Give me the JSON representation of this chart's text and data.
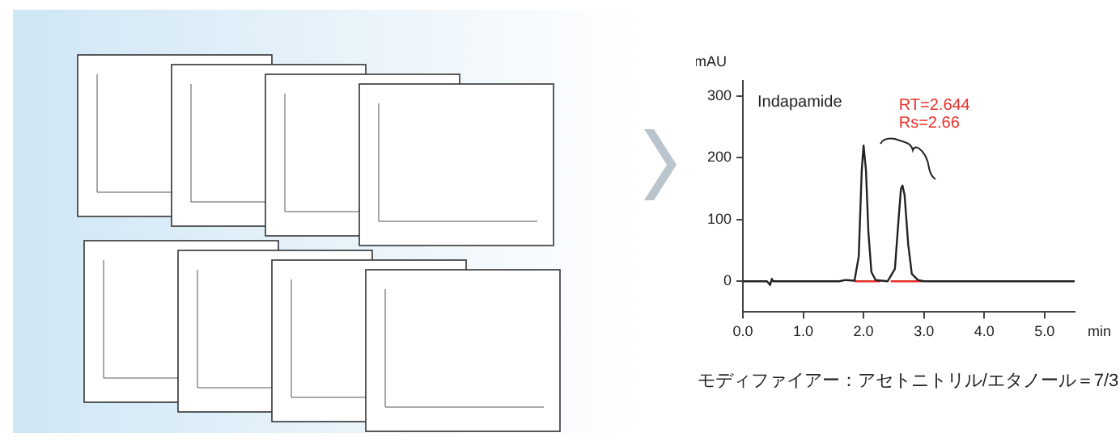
{
  "chart_data": {
    "type": "line",
    "xlabel": "min",
    "ylabel": "mAU",
    "annotations": [
      "Indapamide",
      "RT=2.644",
      "Rs=2.66",
      "モディファイアー：アセトニトリル/エタノール＝7/3"
    ],
    "series": [
      {
        "color": "#222222",
        "x": [
          0,
          0.4,
          0.45,
          0.48,
          0.5,
          1.6,
          1.7,
          1.85,
          1.92,
          1.97,
          2.0,
          2.04,
          2.08,
          2.13,
          2.2,
          2.4,
          2.52,
          2.58,
          2.62,
          2.645,
          2.68,
          2.74,
          2.8,
          2.9,
          3.0,
          5.5
        ],
        "values": [
          0,
          0,
          -6,
          4,
          0,
          0,
          2,
          1,
          40,
          180,
          220,
          180,
          80,
          15,
          2,
          0,
          20,
          100,
          150,
          155,
          140,
          60,
          12,
          2,
          0,
          0
        ]
      },
      {
        "color": "#e8312a",
        "x": [
          1.85,
          2.28,
          2.3,
          2.45,
          2.97
        ],
        "values": [
          0,
          0,
          null,
          0,
          0
        ]
      }
    ],
    "xlim": [
      0,
      5.5
    ],
    "xticks": [
      {
        "value": 0,
        "label": "0.0"
      },
      {
        "value": 1,
        "label": "1.0"
      },
      {
        "value": 2,
        "label": "2.0"
      },
      {
        "value": 3,
        "label": "3.0"
      },
      {
        "value": 4,
        "label": "4.0"
      },
      {
        "value": 5,
        "label": "5.0"
      }
    ],
    "ylim": [
      -50,
      325
    ],
    "yticks": [
      0,
      100,
      200,
      300
    ],
    "grid": false,
    "legend": false,
    "marker": "none",
    "line_style": "solid"
  }
}
